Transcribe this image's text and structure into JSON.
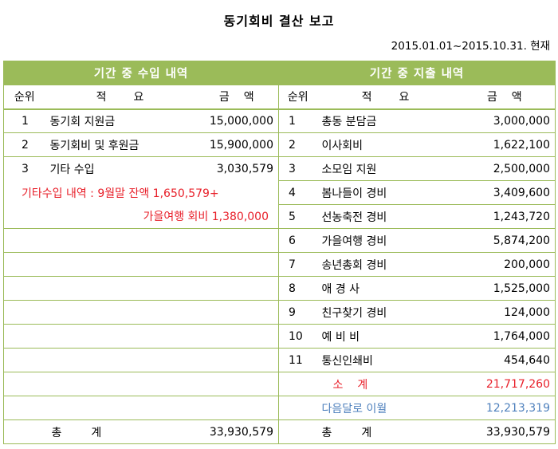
{
  "title": "동기회비 결산 보고",
  "period": "2015.01.01~2015.10.31. 현재",
  "income": {
    "header": "기간 중 수입 내역",
    "col_rank": "순위",
    "col_desc": "적　　요",
    "col_amount": "금　액",
    "rows": [
      {
        "rank": "1",
        "desc": "동기회 지원금",
        "amount": "15,000,000"
      },
      {
        "rank": "2",
        "desc": "동기회비 및 후원금",
        "amount": "15,900,000"
      },
      {
        "rank": "3",
        "desc": "기타 수입",
        "amount": "3,030,579"
      }
    ],
    "note_line1": "기타수입 내역 : 9월말 잔액 1,650,579+",
    "note_line2": "가을여행 회비 1,380,000",
    "total_label": "총　　계",
    "total_amount": "33,930,579"
  },
  "expense": {
    "header": "기간 중 지출 내역",
    "col_rank": "순위",
    "col_desc": "적　　요",
    "col_amount": "금　액",
    "rows": [
      {
        "rank": "1",
        "desc": "총동 분담금",
        "amount": "3,000,000"
      },
      {
        "rank": "2",
        "desc": "이사회비",
        "amount": "1,622,100"
      },
      {
        "rank": "3",
        "desc": "소모임 지원",
        "amount": "2,500,000"
      },
      {
        "rank": "4",
        "desc": "봄나들이 경비",
        "amount": "3,409,600"
      },
      {
        "rank": "5",
        "desc": "선농축전 경비",
        "amount": "1,243,720"
      },
      {
        "rank": "6",
        "desc": "가을여행 경비",
        "amount": "5,874,200"
      },
      {
        "rank": "7",
        "desc": "송년총회 경비",
        "amount": "200,000"
      },
      {
        "rank": "8",
        "desc": "애 경 사",
        "amount": "1,525,000"
      },
      {
        "rank": "9",
        "desc": "친구찾기 경비",
        "amount": "124,000"
      },
      {
        "rank": "10",
        "desc": "예 비 비",
        "amount": "1,764,000"
      },
      {
        "rank": "11",
        "desc": "통신인쇄비",
        "amount": "454,640"
      }
    ],
    "subtotal_label": "소　계",
    "subtotal_amount": "21,717,260",
    "carryover_label": "다음달로 이월",
    "carryover_amount": "12,213,319",
    "total_label": "총　　계",
    "total_amount": "33,930,579"
  },
  "colors": {
    "accent": "#9bbb59",
    "red": "#e8202a",
    "blue": "#4f81bd"
  }
}
